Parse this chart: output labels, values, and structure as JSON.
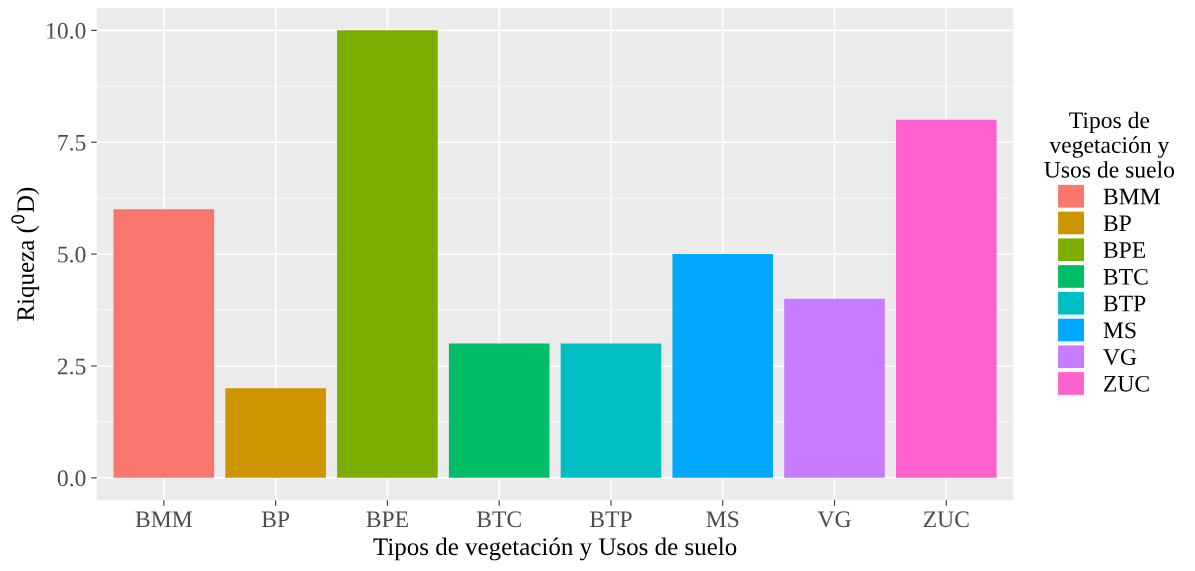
{
  "chart_data": {
    "type": "bar",
    "xlabel": "Tipos de vegetación y Usos de suelo",
    "ylabel": "Riqueza ($^{0}$D)",
    "legend_title": "Tipos de\nvegetación y\nUsos de suelo",
    "categories": [
      "BMM",
      "BP",
      "BPE",
      "BTC",
      "BTP",
      "MS",
      "VG",
      "ZUC"
    ],
    "series": [
      {
        "name": "BMM",
        "color": "#f8766d",
        "values": [
          6,
          null,
          null,
          null,
          null,
          null,
          null,
          null
        ]
      },
      {
        "name": "BP",
        "color": "#cd9600",
        "values": [
          null,
          2,
          null,
          null,
          null,
          null,
          null,
          null
        ]
      },
      {
        "name": "BPE",
        "color": "#7cae00",
        "values": [
          null,
          null,
          10,
          null,
          null,
          null,
          null,
          null
        ]
      },
      {
        "name": "BTC",
        "color": "#00be67",
        "values": [
          null,
          null,
          null,
          3,
          null,
          null,
          null,
          null
        ]
      },
      {
        "name": "BTP",
        "color": "#00bfc4",
        "values": [
          null,
          null,
          null,
          null,
          3,
          null,
          null,
          null
        ]
      },
      {
        "name": "MS",
        "color": "#00a9ff",
        "values": [
          null,
          null,
          null,
          null,
          null,
          5,
          null,
          null
        ]
      },
      {
        "name": "VG",
        "color": "#c77cff",
        "values": [
          null,
          null,
          null,
          null,
          null,
          null,
          4,
          null
        ]
      },
      {
        "name": "ZUC",
        "color": "#ff61cc",
        "values": [
          null,
          null,
          null,
          null,
          null,
          null,
          null,
          8
        ]
      }
    ],
    "ylim": [
      -0.5,
      10.5
    ],
    "yticks": [
      {
        "value": 0,
        "label": "0.0"
      },
      {
        "value": 2.5,
        "label": "2.5"
      },
      {
        "value": 5,
        "label": "5.0"
      },
      {
        "value": 7.5,
        "label": "7.5"
      },
      {
        "value": 10,
        "label": "10.0"
      }
    ],
    "grid": true,
    "legend": "right"
  }
}
